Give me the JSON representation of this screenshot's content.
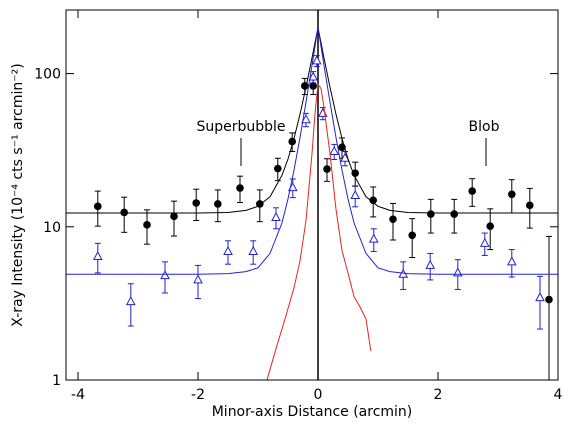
{
  "chart_data": {
    "type": "scatter",
    "x_label": "Minor-axis Distance (arcmin)",
    "y_label": "X-ray Intensity (10⁻⁴ cts s⁻¹ arcmin⁻²)",
    "annotations": [
      "Superbubble",
      "Blob"
    ],
    "xlim": [
      -4.2,
      4.0
    ],
    "ylim": [
      1,
      260
    ],
    "log_y": true,
    "xticks": [
      -4,
      -2,
      0,
      2,
      4
    ],
    "yticks": [
      1,
      10,
      100
    ],
    "vline": 0,
    "series": [
      {
        "mode": "points",
        "marker": "circle",
        "color": "#000000",
        "x": [
          -3.67,
          -3.23,
          -2.85,
          -2.4,
          -2.03,
          -1.67,
          -1.3,
          -0.97,
          -0.67,
          -0.43,
          -0.22,
          -0.08,
          0.15,
          0.4,
          0.62,
          0.92,
          1.25,
          1.57,
          1.88,
          2.27,
          2.57,
          2.87,
          3.23,
          3.53,
          3.85
        ],
        "y": [
          13.6,
          12.4,
          10.3,
          11.7,
          14.3,
          14.1,
          17.9,
          14.1,
          24,
          36,
          83,
          83,
          23.8,
          33,
          22.4,
          14.9,
          11.2,
          8.8,
          12.1,
          12.1,
          17.1,
          10.1,
          16.3,
          13.8,
          3.35
        ],
        "errors": [
          3.5,
          3.2,
          2.6,
          3,
          3.3,
          3.3,
          3.5,
          3.3,
          4,
          5,
          10,
          10,
          4,
          5,
          4,
          3.3,
          3,
          2.5,
          3,
          3,
          3.5,
          3,
          4,
          4,
          5.3
        ]
      },
      {
        "mode": "points",
        "marker": "triangle",
        "color": "#2222cc",
        "x": [
          -3.67,
          -3.12,
          -2.55,
          -2.0,
          -1.5,
          -1.08,
          -0.7,
          -0.42,
          -0.2,
          -0.08,
          -0.02,
          0.08,
          0.27,
          0.45,
          0.62,
          0.93,
          1.42,
          1.87,
          2.33,
          2.78,
          3.23,
          3.7
        ],
        "y": [
          6.4,
          3.25,
          4.8,
          4.5,
          6.9,
          6.9,
          11.5,
          18,
          50,
          95,
          121,
          55,
          31,
          28,
          16,
          8.3,
          4.9,
          5.6,
          5.0,
          7.8,
          5.9,
          3.45
        ],
        "errors": [
          1.4,
          1,
          1.1,
          1.1,
          1.2,
          1.2,
          1.8,
          2.5,
          5,
          8,
          10,
          5,
          3.5,
          3,
          2.5,
          1.4,
          1,
          1.1,
          1.1,
          1.3,
          1.2,
          1.3
        ]
      },
      {
        "mode": "line",
        "color": "#000000",
        "x": [
          -4.2,
          -2,
          -1.5,
          -1.2,
          -1.0,
          -0.8,
          -0.6,
          -0.5,
          -0.4,
          -0.3,
          -0.2,
          -0.1,
          0,
          0.1,
          0.2,
          0.3,
          0.4,
          0.5,
          0.6,
          0.8,
          1.0,
          1.2,
          1.5,
          2,
          4.0
        ],
        "y": [
          12.3,
          12.3,
          12.4,
          12.8,
          13.6,
          15.7,
          21.7,
          27.7,
          37.7,
          54.2,
          81.5,
          126.3,
          200,
          126.3,
          81.5,
          54.2,
          37.7,
          27.7,
          21.7,
          15.7,
          13.6,
          12.8,
          12.4,
          12.3,
          12.3
        ]
      },
      {
        "mode": "line",
        "color": "#2222cc",
        "x": [
          -4.2,
          -2,
          -1.5,
          -1.2,
          -1.0,
          -0.8,
          -0.6,
          -0.5,
          -0.4,
          -0.3,
          -0.2,
          -0.1,
          0,
          0.1,
          0.2,
          0.3,
          0.4,
          0.5,
          0.6,
          0.8,
          1.0,
          1.2,
          1.5,
          2,
          4.0
        ],
        "y": [
          4.9,
          4.9,
          4.95,
          5.1,
          5.4,
          6.7,
          10.6,
          15.2,
          23.4,
          38.2,
          65,
          113,
          200,
          113,
          65,
          38.2,
          23.4,
          15.2,
          10.6,
          6.7,
          5.4,
          5.1,
          4.95,
          4.9,
          4.9
        ]
      },
      {
        "mode": "line",
        "color": "#ee2222",
        "x": [
          -0.85,
          -0.7,
          -0.55,
          -0.4,
          -0.3,
          -0.2,
          -0.1,
          -0.05,
          0,
          0.05,
          0.1,
          0.2,
          0.3,
          0.4,
          0.5,
          0.6,
          0.7,
          0.8,
          0.88
        ],
        "y": [
          1,
          1.6,
          2.5,
          4,
          6,
          11,
          30,
          55,
          85,
          80,
          60,
          30,
          13,
          7,
          5,
          3.5,
          3,
          2.5,
          1.55
        ]
      }
    ]
  }
}
